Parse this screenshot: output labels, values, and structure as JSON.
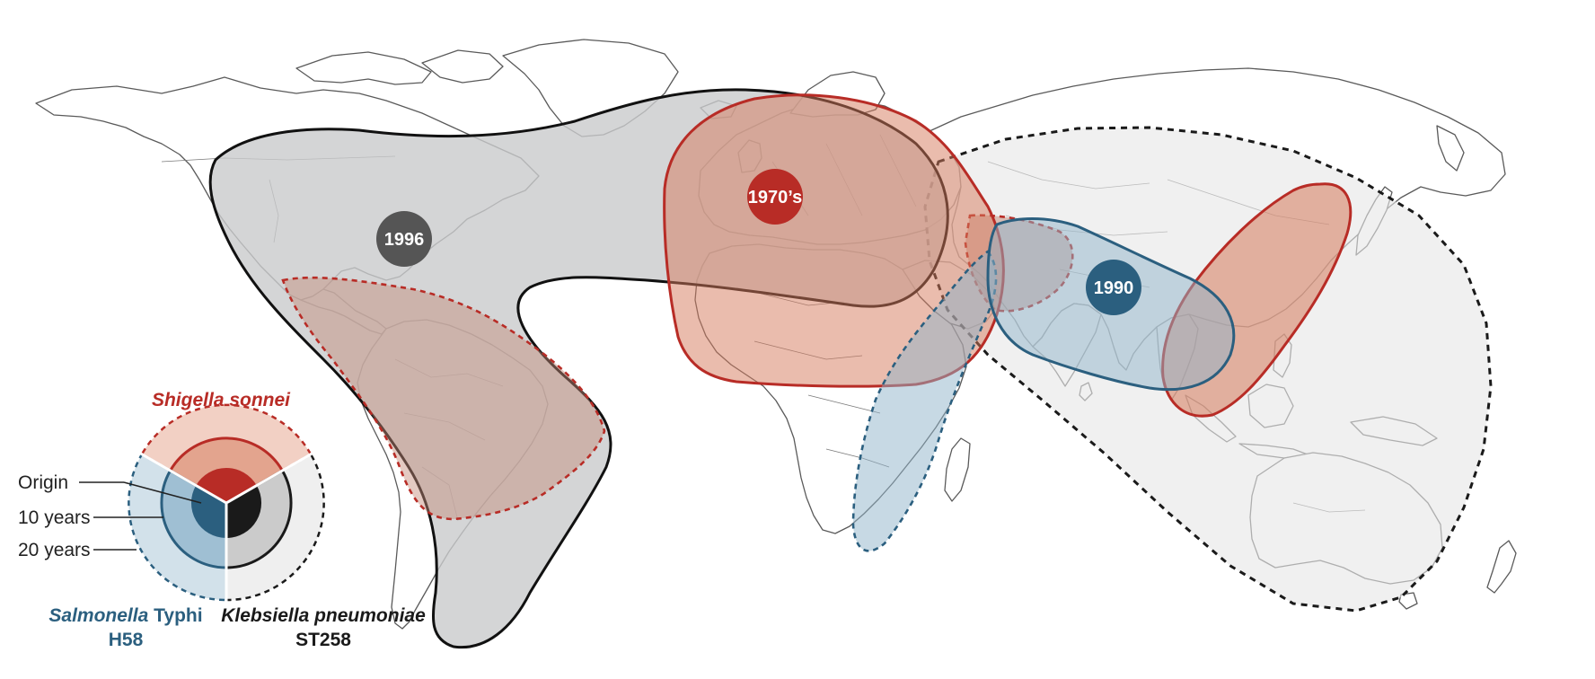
{
  "colors": {
    "shigella": "#b82c26",
    "salmonella": "#2b5f7f",
    "klebsiella": "#1a1a1a",
    "klebsiella_marker": "#555555"
  },
  "markers": {
    "shigella_origin": "1970’s",
    "salmonella_origin": "1990",
    "klebsiella_origin": "1996"
  },
  "legend": {
    "shigella_title": "Shigella sonnei",
    "salmonella_title_italic": "Salmonella",
    "salmonella_title_rest": " Typhi",
    "salmonella_subtitle": "H58",
    "klebsiella_title": "Klebsiella pneumoniae",
    "klebsiella_subtitle": "ST258",
    "origin_label": "Origin",
    "ten_years_label": "10 years",
    "twenty_years_label": "20 years"
  }
}
